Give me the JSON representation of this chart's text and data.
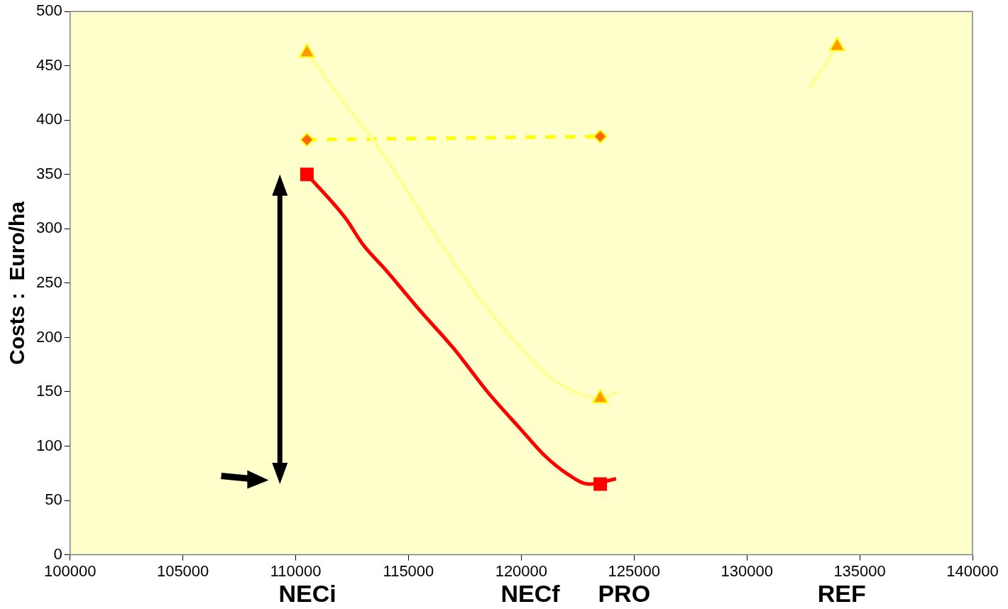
{
  "chart_data": {
    "type": "line",
    "xlabel": null,
    "ylabel": "Costs :  Euro/ha",
    "xlim": [
      100000,
      140000
    ],
    "xticks": [
      100000,
      105000,
      110000,
      115000,
      120000,
      125000,
      130000,
      135000,
      140000
    ],
    "ylim": [
      0,
      500
    ],
    "yticks": [
      0,
      50,
      100,
      150,
      200,
      250,
      300,
      350,
      400,
      450,
      500
    ],
    "grid": false,
    "legend": false,
    "series": [
      {
        "color": "#ffff99",
        "marker": "none",
        "line_style": "solid",
        "x": [
          110500,
          112000,
          114000,
          116000,
          118000,
          120000,
          121500,
          123500,
          124300
        ],
        "values": [
          462,
          420,
          365,
          300,
          240,
          190,
          160,
          144,
          150
        ]
      },
      {
        "color": "#ffff99",
        "marker": "none",
        "line_style": "solid",
        "x": [
          132800,
          134000
        ],
        "values": [
          430,
          468
        ]
      },
      {
        "color": "#ffff00",
        "marker": "diamond",
        "line_style": "dashed",
        "x": [
          110500,
          123500
        ],
        "values": [
          382,
          385
        ]
      },
      {
        "color": "#ff0000",
        "marker": "none",
        "line_style": "solid",
        "x": [
          110500,
          112200,
          113000,
          114000,
          115500,
          117000,
          118500,
          120000,
          121000,
          122000,
          123000,
          124200
        ],
        "values": [
          350,
          310,
          285,
          262,
          225,
          190,
          150,
          115,
          92,
          75,
          65,
          70
        ]
      },
      {
        "type": "scatter",
        "color": "#ff9900",
        "marker": "triangle",
        "x": [
          110500,
          123500,
          134000
        ],
        "values": [
          462,
          144,
          468
        ]
      },
      {
        "type": "scatter",
        "color": "#ff0000",
        "marker": "square",
        "x": [
          110500,
          123500
        ],
        "values": [
          350,
          65
        ]
      }
    ],
    "annotations": [
      "NECi",
      "NECf",
      "PRO",
      "REF"
    ]
  }
}
